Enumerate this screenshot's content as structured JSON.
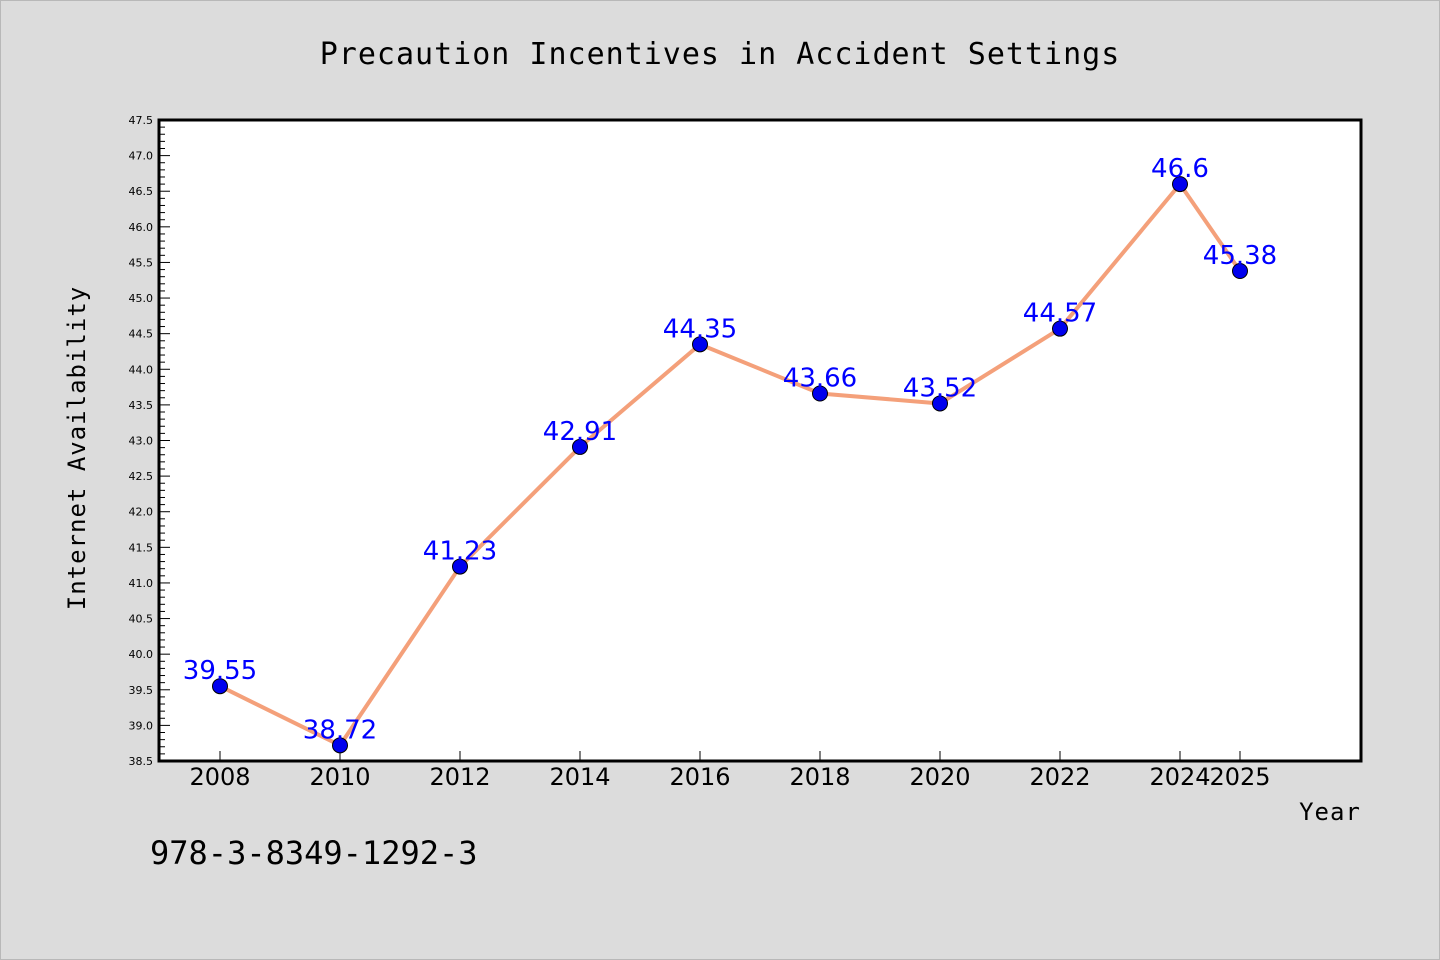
{
  "chart_data": {
    "type": "line",
    "title": "Precaution Incentives in Accident Settings",
    "xlabel": "Year",
    "ylabel": "Internet Availability",
    "ylim": [
      38.5,
      47.5
    ],
    "ytick_step": 0.5,
    "x": [
      "2008",
      "2010",
      "2012",
      "2014",
      "2016",
      "2018",
      "2020",
      "2022",
      "2024",
      "2025"
    ],
    "series": [
      {
        "values": [
          39.55,
          38.72,
          41.23,
          42.91,
          44.35,
          43.66,
          43.52,
          44.57,
          46.6,
          45.38
        ],
        "data_labels": [
          "39.55",
          "38.72",
          "41.23",
          "42.91",
          "44.35",
          "43.66",
          "43.52",
          "44.57",
          "46.6",
          "45.38"
        ],
        "line_color": "#f4a07a",
        "marker_color": "#0000ee"
      }
    ],
    "grid": false,
    "legend": "none"
  },
  "footer_text": "978-3-8349-1292-3",
  "colors": {
    "background": "#dcdcdc",
    "plot_background": "#ffffff",
    "label_color": "#0000ff"
  }
}
